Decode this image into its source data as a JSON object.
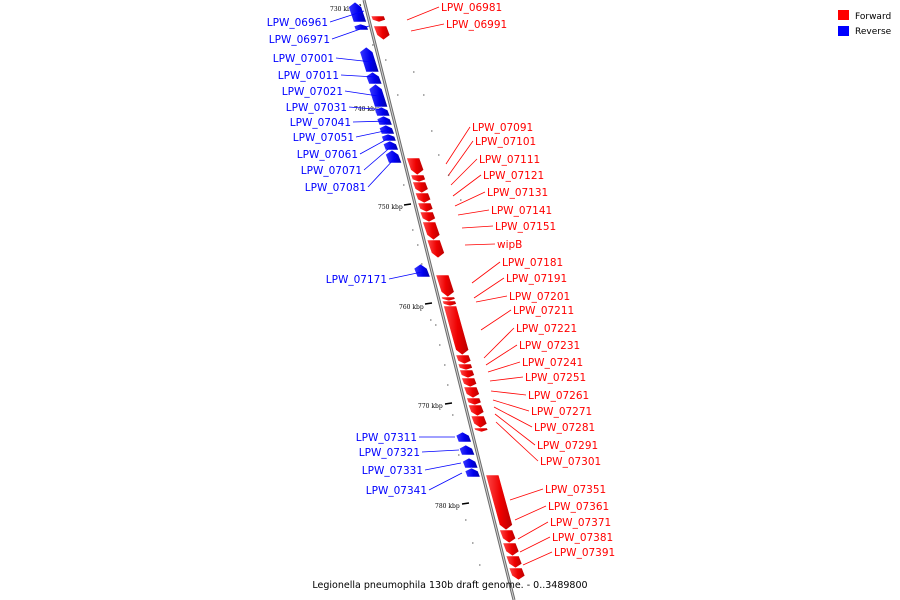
{
  "caption": "Legionella pneumophila 130b draft genome. - 0..3489800",
  "legend": {
    "forward_label": "Forward",
    "reverse_label": "Reverse",
    "forward_color": "#ff0000",
    "reverse_color": "#0000ff"
  },
  "scale_ticks": [
    "730 kbp",
    "740 kbp",
    "750 kbp",
    "760 kbp",
    "770 kbp",
    "780 kbp"
  ],
  "reverse_genes": [
    "LPW_06961",
    "LPW_06971",
    "LPW_07001",
    "LPW_07011",
    "LPW_07021",
    "LPW_07031",
    "LPW_07041",
    "LPW_07051",
    "LPW_07061",
    "LPW_07071",
    "LPW_07081",
    "LPW_07171",
    "LPW_07311",
    "LPW_07321",
    "LPW_07331",
    "LPW_07341"
  ],
  "forward_genes": [
    "LPW_06981",
    "LPW_06991",
    "LPW_07091",
    "LPW_07101",
    "LPW_07111",
    "LPW_07121",
    "LPW_07131",
    "LPW_07141",
    "LPW_07151",
    "wipB",
    "LPW_07181",
    "LPW_07191",
    "LPW_07201",
    "LPW_07211",
    "LPW_07221",
    "LPW_07231",
    "LPW_07241",
    "LPW_07251",
    "LPW_07261",
    "LPW_07271",
    "LPW_07281",
    "LPW_07291",
    "LPW_07301",
    "LPW_07351",
    "LPW_07361",
    "LPW_07371",
    "LPW_07381",
    "LPW_07391"
  ]
}
